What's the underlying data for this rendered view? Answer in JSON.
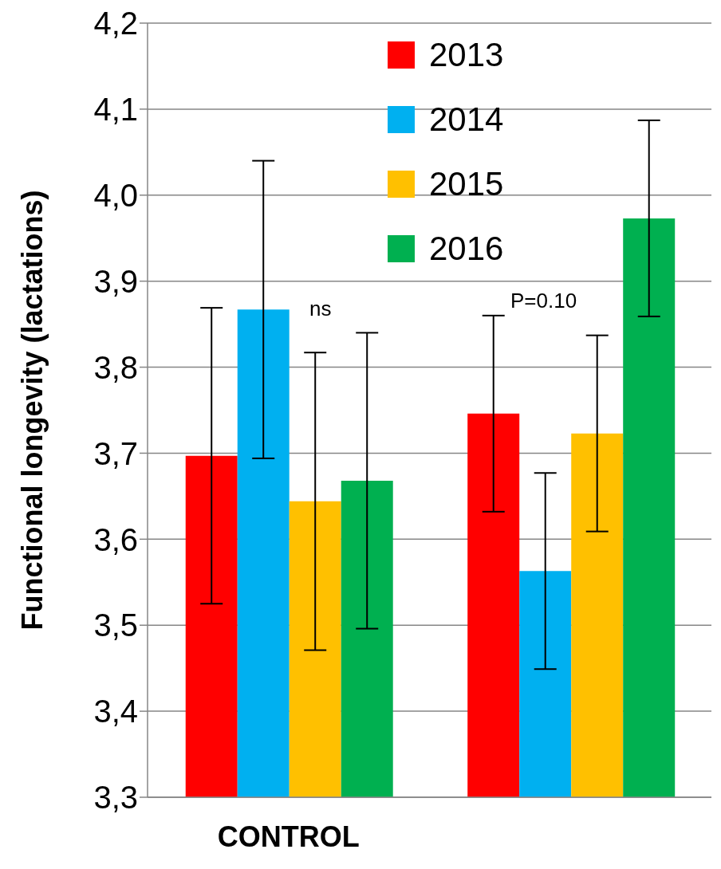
{
  "chart_data": {
    "type": "bar",
    "ylabel": "Functional longevity (lactations)",
    "categories": [
      "CONTROL",
      null
    ],
    "series": [
      {
        "name": "2013",
        "color": "#ff0000",
        "values": [
          3.697,
          3.746
        ],
        "errors": [
          0.172,
          0.114
        ]
      },
      {
        "name": "2014",
        "color": "#00b0f0",
        "values": [
          3.867,
          3.563
        ],
        "errors": [
          0.173,
          0.114
        ]
      },
      {
        "name": "2015",
        "color": "#ffc000",
        "values": [
          3.644,
          3.723
        ],
        "errors": [
          0.173,
          0.114
        ]
      },
      {
        "name": "2016",
        "color": "#00b050",
        "values": [
          3.668,
          3.973
        ],
        "errors": [
          0.172,
          0.114
        ]
      }
    ],
    "ylim": [
      3.3,
      4.2
    ],
    "yticks": [
      {
        "value": 3.3,
        "label": "3,3"
      },
      {
        "value": 3.4,
        "label": "3,4"
      },
      {
        "value": 3.5,
        "label": "3,5"
      },
      {
        "value": 3.6,
        "label": "3,6"
      },
      {
        "value": 3.7,
        "label": "3,7"
      },
      {
        "value": 3.8,
        "label": "3,8"
      },
      {
        "value": 3.9,
        "label": "3,9"
      },
      {
        "value": 4.0,
        "label": "4,0"
      },
      {
        "value": 4.1,
        "label": "4,1"
      },
      {
        "value": 4.2,
        "label": "4,2"
      }
    ],
    "grid": "y",
    "legend": "top right",
    "annotations": [
      "ns",
      "P=0.10"
    ]
  }
}
